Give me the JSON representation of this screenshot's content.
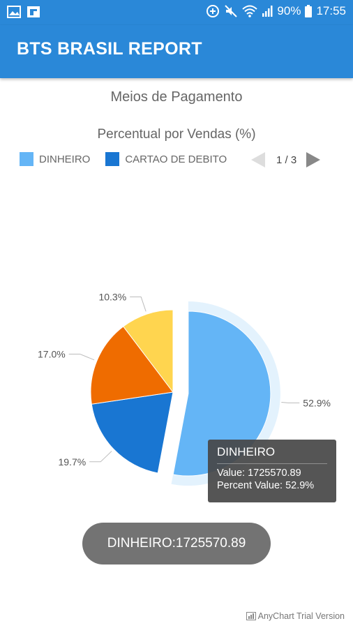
{
  "statusbar": {
    "battery_text": "90%",
    "time": "17:55",
    "icons": [
      "image-icon",
      "flipboard-icon",
      "data-saver-icon",
      "mute-icon",
      "wifi-icon",
      "signal-icon",
      "battery-icon"
    ]
  },
  "appbar": {
    "title": "BTS BRASIL REPORT",
    "color": "#2a88d8"
  },
  "legend": {
    "items": [
      {
        "label": "DINHEIRO",
        "color": "#64b5f6"
      },
      {
        "label": "CARTAO DE DEBITO",
        "color": "#1976d2"
      }
    ],
    "page_text": "1 / 3"
  },
  "chart_data": {
    "type": "pie",
    "title": "Meios de Pagamento",
    "subtitle": "Percentual por Vendas (%)",
    "slices": [
      {
        "name": "DINHEIRO",
        "percent": 52.9,
        "label": "52.9%",
        "color": "#64b5f6",
        "exploded": true
      },
      {
        "name": "CARTAO DE DEBITO",
        "percent": 19.7,
        "label": "19.7%",
        "color": "#1976d2"
      },
      {
        "name": "",
        "percent": 17.0,
        "label": "17.0%",
        "color": "#ef6c00"
      },
      {
        "name": "",
        "percent": 10.3,
        "label": "10.3%",
        "color": "#ffd54f"
      }
    ],
    "tooltip": {
      "title": "DINHEIRO",
      "value_line": "Value: 1725570.89",
      "percent_line": "Percent Value: 52.9%"
    }
  },
  "toast": "DINHEIRO:1725570.89",
  "credits": "AnyChart Trial Version"
}
